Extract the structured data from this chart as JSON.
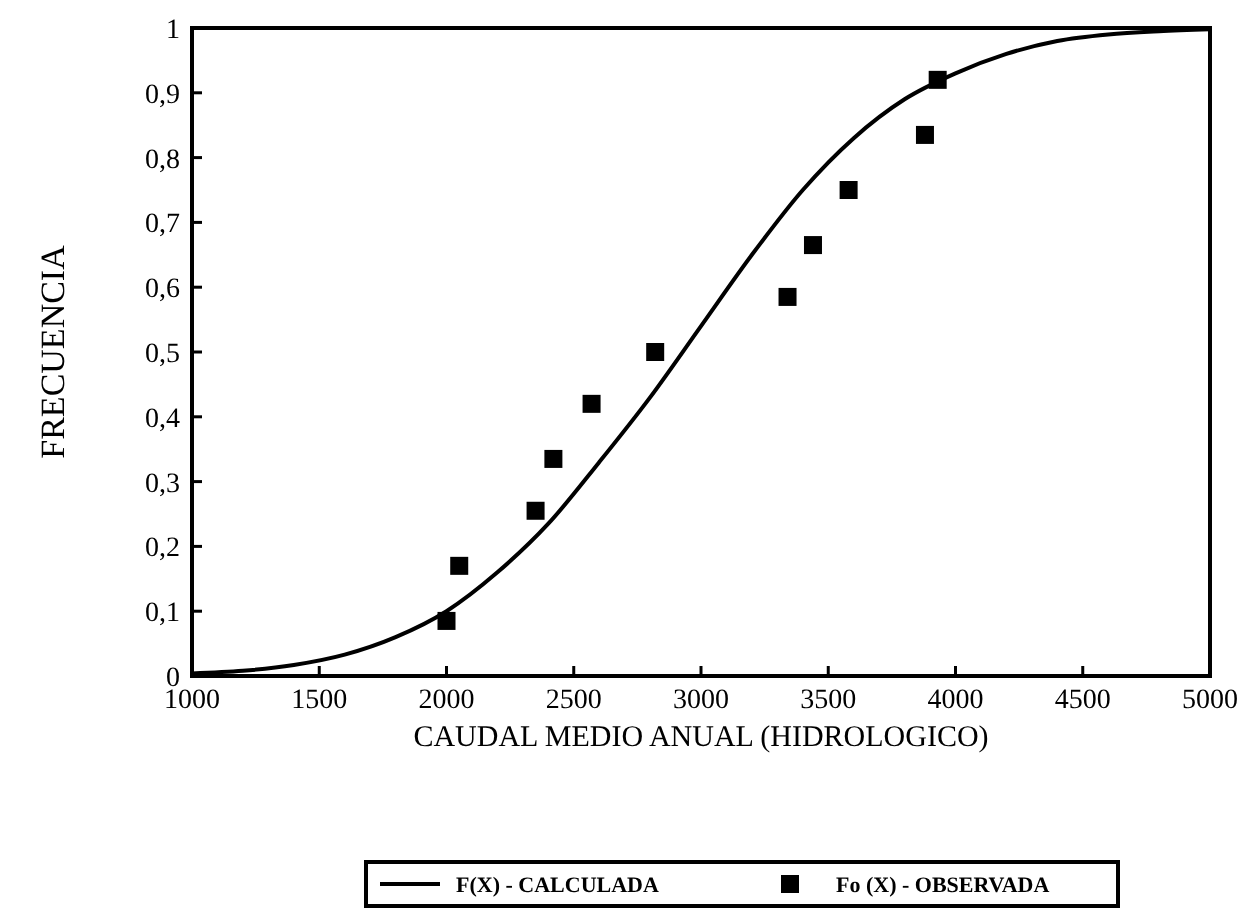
{
  "chart_data": {
    "type": "line",
    "xlabel": "CAUDAL MEDIO ANUAL (HIDROLOGICO)",
    "ylabel": "FRECUENCIA",
    "xlim": [
      1000,
      5000
    ],
    "ylim": [
      0,
      1
    ],
    "xticks": [
      1000,
      1500,
      2000,
      2500,
      3000,
      3500,
      4000,
      4500,
      5000
    ],
    "yticks": [
      0,
      {
        "value": 0.1,
        "label": "0,1"
      },
      {
        "value": 0.2,
        "label": "0,2"
      },
      {
        "value": 0.3,
        "label": "0,3"
      },
      {
        "value": 0.4,
        "label": "0,4"
      },
      {
        "value": 0.5,
        "label": "0,5"
      },
      {
        "value": 0.6,
        "label": "0,6"
      },
      {
        "value": 0.7,
        "label": "0,7"
      },
      {
        "value": 0.8,
        "label": "0,8"
      },
      {
        "value": 0.9,
        "label": "0,9"
      },
      1
    ],
    "grid": false,
    "legend": "bottom",
    "series": [
      {
        "name": "F(X) - CALCULADA",
        "color": "#000000",
        "marker": "none",
        "line_style": "solid",
        "x": [
          1000,
          1200,
          1400,
          1600,
          1800,
          2000,
          2200,
          2400,
          2600,
          2800,
          3000,
          3200,
          3400,
          3600,
          3800,
          4000,
          4200,
          4400,
          4600,
          4800,
          5000
        ],
        "values": [
          0.004,
          0.008,
          0.017,
          0.033,
          0.06,
          0.1,
          0.16,
          0.235,
          0.33,
          0.43,
          0.54,
          0.65,
          0.75,
          0.83,
          0.89,
          0.93,
          0.96,
          0.98,
          0.99,
          0.995,
          0.998
        ]
      },
      {
        "name": "Fo (X) - OBSERVADA",
        "type": "scatter",
        "color": "#000000",
        "marker": "square",
        "x": [
          2000,
          2050,
          2350,
          2420,
          2570,
          2820,
          3340,
          3440,
          3580,
          3880,
          3930
        ],
        "values": [
          0.085,
          0.17,
          0.255,
          0.335,
          0.42,
          0.5,
          0.585,
          0.665,
          0.75,
          0.835,
          0.92
        ]
      }
    ]
  }
}
